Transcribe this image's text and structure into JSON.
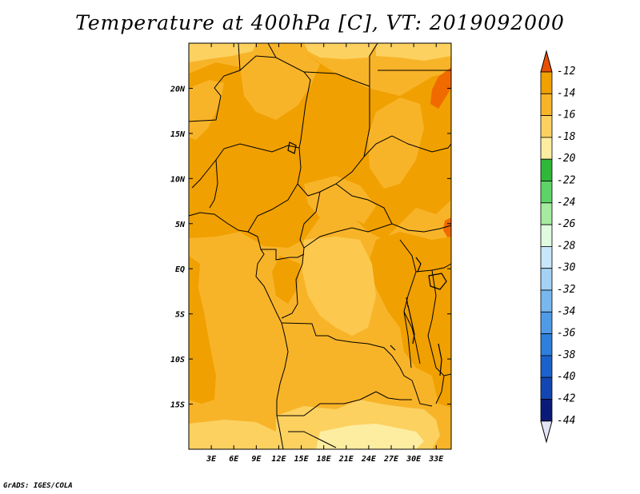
{
  "title": "Temperature at 400hPa [C], VT: 2019092000",
  "footer": "GrADS: IGES/COLA",
  "map": {
    "lon_range": [
      0,
      35
    ],
    "lat_range": [
      -20,
      25
    ],
    "lon_ticks": [
      "3E",
      "6E",
      "9E",
      "12E",
      "15E",
      "18E",
      "21E",
      "24E",
      "27E",
      "30E",
      "33E"
    ],
    "lat_ticks": [
      "20N",
      "15N",
      "10N",
      "5N",
      "EQ",
      "5S",
      "10S",
      "15S"
    ],
    "fill_colors": {
      "orange_dark": "#f0a000",
      "orange": "#f8b429",
      "yellow_orange": "#fcc94e",
      "light_yellow": "#fde58a",
      "red_orange": "#f06a00"
    }
  },
  "colorbar": {
    "labels": [
      "-12",
      "-14",
      "-16",
      "-18",
      "-20",
      "-22",
      "-24",
      "-26",
      "-28",
      "-30",
      "-32",
      "-34",
      "-36",
      "-38",
      "-40",
      "-42",
      "-44"
    ],
    "colors": [
      "#f06a00",
      "#f0a000",
      "#f8b429",
      "#fcd160",
      "#fdeda0",
      "#2fb83a",
      "#5fd466",
      "#a6eba0",
      "#e0fbe0",
      "#c8e6f9",
      "#a3d2f5",
      "#78b8ef",
      "#4f9be8",
      "#2f7fdd",
      "#1c62cc",
      "#1346b3",
      "#0b1a78"
    ],
    "top_triangle_color": "#e85000",
    "bottom_triangle_color": "#e4e4f7"
  }
}
